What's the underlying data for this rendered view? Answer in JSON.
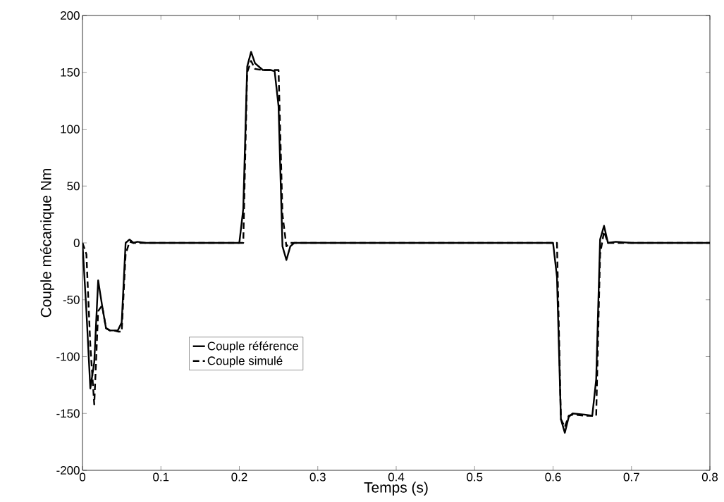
{
  "chart_data": {
    "type": "line",
    "xlabel": "Temps (s)",
    "ylabel": "Couple mécanique Nm",
    "xlim": [
      0,
      0.8
    ],
    "ylim": [
      -200,
      200
    ],
    "xticks": [
      0,
      0.1,
      0.2,
      0.3,
      0.4,
      0.5,
      0.6,
      0.7,
      0.8
    ],
    "yticks": [
      -200,
      -150,
      -100,
      -50,
      0,
      50,
      100,
      150,
      200
    ],
    "grid": false,
    "legend": "bottom left",
    "marker": "none",
    "series": [
      {
        "name": "Couple référence",
        "color": "#000000",
        "line_style": "solid",
        "x": [
          0,
          0.005,
          0.01,
          0.015,
          0.02,
          0.025,
          0.03,
          0.035,
          0.04,
          0.045,
          0.05,
          0.055,
          0.06,
          0.065,
          0.07,
          0.08,
          0.1,
          0.2,
          0.205,
          0.21,
          0.215,
          0.22,
          0.23,
          0.24,
          0.245,
          0.25,
          0.255,
          0.26,
          0.265,
          0.27,
          0.3,
          0.6,
          0.605,
          0.61,
          0.615,
          0.62,
          0.625,
          0.64,
          0.65,
          0.655,
          0.66,
          0.665,
          0.67,
          0.68,
          0.7,
          0.8
        ],
        "values": [
          0,
          -60,
          -128,
          -105,
          -33,
          -55,
          -75,
          -77,
          -77,
          -77,
          -70,
          0,
          3,
          0,
          1,
          0,
          0,
          0,
          30,
          155,
          168,
          158,
          152,
          152,
          151,
          120,
          -3,
          -15,
          -3,
          0,
          0,
          0,
          -30,
          -155,
          -167,
          -153,
          -150,
          -151,
          -152,
          -120,
          3,
          15,
          0,
          1,
          0,
          0
        ]
      },
      {
        "name": "Couple simulé",
        "color": "#000000",
        "line_style": "dashed",
        "x": [
          0,
          0.005,
          0.01,
          0.015,
          0.02,
          0.025,
          0.03,
          0.035,
          0.04,
          0.045,
          0.05,
          0.055,
          0.06,
          0.065,
          0.07,
          0.08,
          0.1,
          0.2,
          0.205,
          0.21,
          0.215,
          0.22,
          0.23,
          0.24,
          0.25,
          0.255,
          0.26,
          0.265,
          0.27,
          0.3,
          0.6,
          0.605,
          0.61,
          0.615,
          0.62,
          0.625,
          0.64,
          0.655,
          0.66,
          0.665,
          0.67,
          0.68,
          0.7,
          0.8
        ],
        "values": [
          0,
          -10,
          -90,
          -142,
          -60,
          -55,
          -75,
          -77,
          -77,
          -78,
          -78,
          -10,
          1,
          0,
          0,
          0,
          0,
          0,
          0,
          150,
          160,
          153,
          152,
          152,
          152,
          25,
          -3,
          0,
          0,
          0,
          0,
          0,
          -155,
          -162,
          -152,
          -151,
          -152,
          -152,
          -10,
          10,
          0,
          0,
          0,
          0
        ]
      }
    ]
  }
}
